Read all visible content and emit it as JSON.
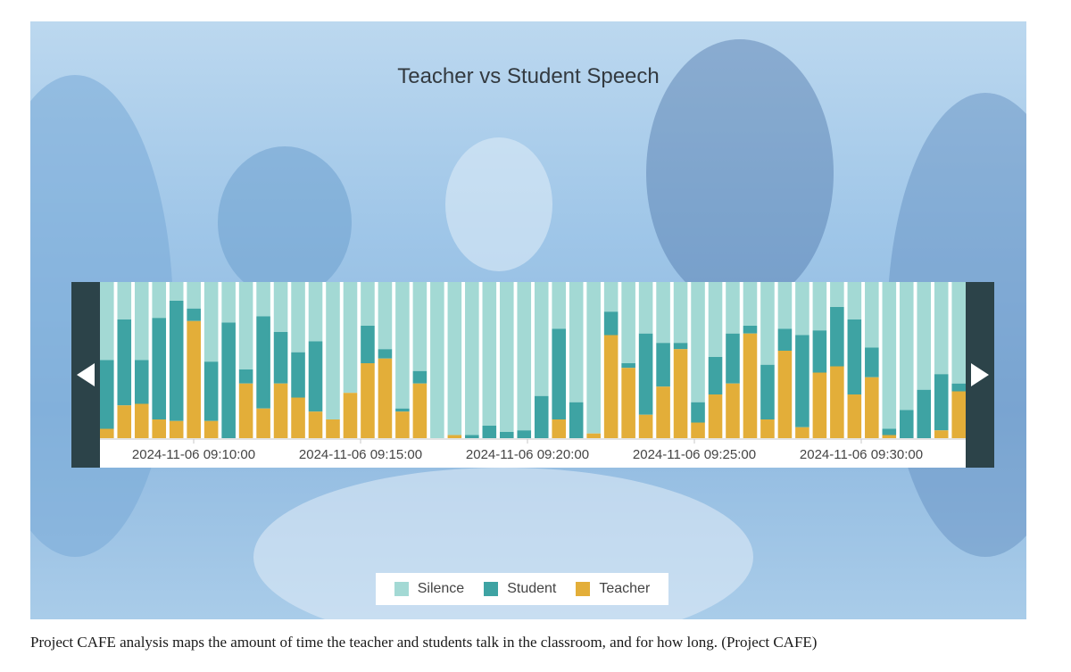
{
  "caption": "Project CAFE analysis maps the amount of time the teacher and students talk in the classroom, and for how long. (Project CAFE)",
  "chart_data": {
    "type": "bar",
    "stacked": true,
    "normalized": true,
    "title": "Teacher vs Student Speech",
    "tick_labels": [
      "2024-11-06 09:10:00",
      "2024-11-06 09:15:00",
      "2024-11-06 09:20:00",
      "2024-11-06 09:25:00",
      "2024-11-06 09:30:00"
    ],
    "legend_position": "bottom",
    "series": [
      {
        "name": "Teacher",
        "color": "#e3ae39",
        "values": [
          6,
          21,
          22,
          12,
          11,
          75,
          11,
          0,
          35,
          19,
          35,
          26,
          17,
          12,
          29,
          48,
          51,
          17,
          35,
          0,
          2,
          0,
          0,
          0,
          0,
          0,
          12,
          0,
          3,
          66,
          45,
          15,
          33,
          57,
          10,
          28,
          35,
          67,
          12,
          56,
          7,
          42,
          46,
          28,
          39,
          2,
          0,
          0,
          5,
          30
        ]
      },
      {
        "name": "Student",
        "color": "#3ea3a3",
        "values": [
          44,
          55,
          28,
          65,
          77,
          8,
          38,
          74,
          9,
          59,
          33,
          29,
          45,
          0,
          0,
          24,
          6,
          2,
          8,
          0,
          0,
          2,
          8,
          4,
          5,
          27,
          58,
          23,
          0,
          15,
          3,
          52,
          28,
          4,
          13,
          24,
          32,
          5,
          35,
          14,
          59,
          27,
          38,
          48,
          19,
          4,
          18,
          31,
          36,
          5
        ]
      },
      {
        "name": "Silence",
        "color": "#a3d9d4",
        "values": [
          50,
          24,
          50,
          23,
          12,
          17,
          51,
          26,
          56,
          22,
          32,
          45,
          38,
          88,
          71,
          28,
          43,
          81,
          57,
          100,
          98,
          98,
          92,
          96,
          95,
          73,
          30,
          77,
          97,
          19,
          52,
          33,
          39,
          39,
          77,
          48,
          33,
          28,
          53,
          30,
          34,
          31,
          16,
          24,
          42,
          94,
          82,
          69,
          59,
          65
        ]
      }
    ]
  }
}
